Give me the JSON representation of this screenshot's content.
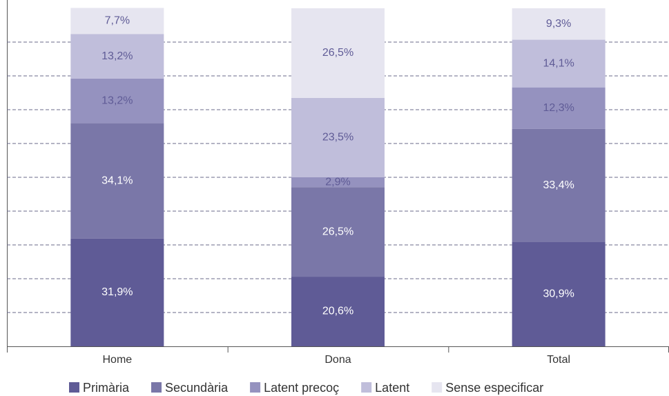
{
  "chart_data": {
    "type": "stacked_bar",
    "categories": [
      "Home",
      "Dona",
      "Total"
    ],
    "series": [
      {
        "name": "Primària",
        "color": "#5f5b96",
        "values": [
          31.9,
          20.6,
          30.9
        ],
        "value_labels": [
          "31,9%",
          "20,6%",
          "30,9%"
        ]
      },
      {
        "name": "Secundària",
        "color": "#7a77a8",
        "values": [
          34.1,
          26.5,
          33.4
        ],
        "value_labels": [
          "34,1%",
          "26,5%",
          "33,4%"
        ]
      },
      {
        "name": "Latent precoç",
        "color": "#9592bf",
        "values": [
          13.2,
          2.9,
          12.3
        ],
        "value_labels": [
          "13,2%",
          "2,9%",
          "12,3%"
        ]
      },
      {
        "name": "Latent",
        "color": "#c0bedb",
        "values": [
          13.2,
          23.5,
          14.1
        ],
        "value_labels": [
          "13,2%",
          "23,5%",
          "14,1%"
        ]
      },
      {
        "name": "Sense especificar",
        "color": "#e6e5f0",
        "values": [
          7.7,
          26.5,
          9.3
        ],
        "value_labels": [
          "7,7%",
          "26,5%",
          "9,3%"
        ]
      }
    ],
    "ylim": [
      0,
      100
    ],
    "yticks": [
      10,
      20,
      30,
      40,
      50,
      60,
      70,
      80,
      90
    ],
    "grid": true,
    "legend": "bottom"
  }
}
